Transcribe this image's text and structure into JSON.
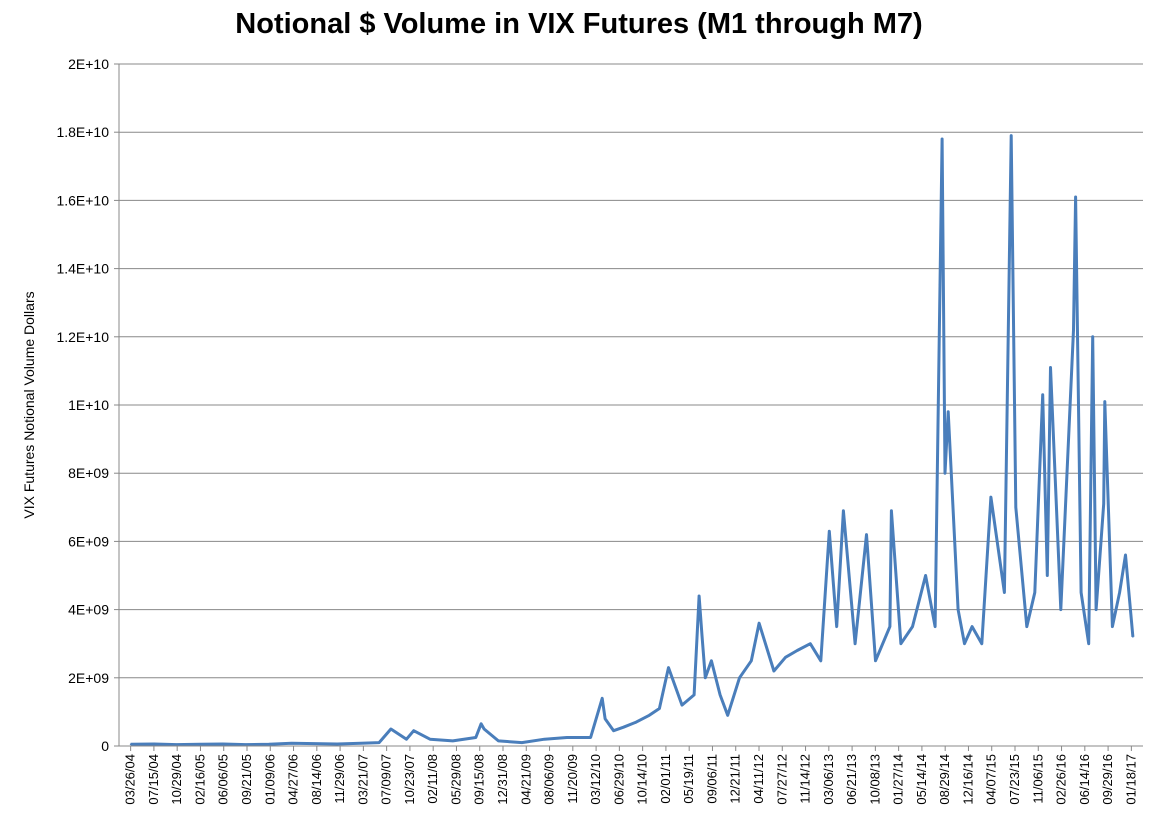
{
  "chart_data": {
    "type": "line",
    "title": "Notional $ Volume in VIX Futures (M1 through M7)",
    "xlabel": "",
    "ylabel": "VIX Futures Notional Volume Dollars",
    "ylim": [
      0,
      20000000000
    ],
    "y_ticks": [
      0,
      2000000000,
      4000000000,
      6000000000,
      8000000000,
      10000000000,
      12000000000,
      14000000000,
      16000000000,
      18000000000,
      20000000000
    ],
    "y_tick_labels": [
      "0",
      "2E+09",
      "4E+09",
      "6E+09",
      "8E+09",
      "1E+10",
      "1.2E+10",
      "1.4E+10",
      "1.6E+10",
      "1.8E+10",
      "2E+10"
    ],
    "x_tick_labels": [
      "03/26/04",
      "07/15/04",
      "10/29/04",
      "02/16/05",
      "06/06/05",
      "09/21/05",
      "01/09/06",
      "04/27/06",
      "08/14/06",
      "11/29/06",
      "03/21/07",
      "07/09/07",
      "10/23/07",
      "02/11/08",
      "05/29/08",
      "09/15/08",
      "12/31/08",
      "04/21/09",
      "08/06/09",
      "11/20/09",
      "03/12/10",
      "06/29/10",
      "10/14/10",
      "02/01/11",
      "05/19/11",
      "09/06/11",
      "12/21/11",
      "04/11/12",
      "07/27/12",
      "11/14/12",
      "03/06/13",
      "06/21/13",
      "10/08/13",
      "01/27/14",
      "05/14/14",
      "08/29/14",
      "12/16/14",
      "04/07/15",
      "07/23/15",
      "11/06/15",
      "02/26/16",
      "06/14/16",
      "09/29/16",
      "01/18/17"
    ],
    "grid": true,
    "legend": "none",
    "series": [
      {
        "color": "#4a7ebb",
        "x": [
          "03/26/04",
          "07/15/04",
          "10/29/04",
          "02/16/05",
          "06/06/05",
          "09/21/05",
          "01/09/06",
          "04/27/06",
          "08/14/06",
          "11/29/06",
          "03/21/07",
          "06/15/07",
          "08/10/07",
          "10/23/07",
          "11/26/07",
          "02/11/08",
          "05/29/08",
          "09/15/08",
          "10/10/08",
          "10/24/08",
          "12/31/08",
          "04/21/09",
          "08/06/09",
          "11/20/09",
          "03/12/10",
          "05/06/10",
          "05/20/10",
          "06/29/10",
          "08/15/10",
          "10/14/10",
          "12/15/10",
          "02/01/11",
          "03/16/11",
          "05/19/11",
          "07/15/11",
          "08/08/11",
          "08/22/11",
          "09/06/11",
          "10/05/11",
          "11/15/11",
          "12/21/11",
          "02/15/12",
          "04/11/12",
          "05/18/12",
          "07/27/12",
          "09/20/12",
          "11/14/12",
          "01/15/13",
          "03/06/13",
          "04/15/13",
          "05/20/13",
          "06/21/13",
          "08/15/13",
          "10/08/13",
          "11/20/13",
          "01/27/14",
          "02/03/14",
          "03/20/14",
          "05/14/14",
          "07/15/14",
          "08/29/14",
          "10/01/14",
          "10/15/14",
          "10/30/14",
          "12/16/14",
          "01/15/15",
          "02/20/15",
          "04/07/15",
          "05/20/15",
          "07/23/15",
          "08/24/15",
          "09/15/15",
          "11/06/15",
          "12/14/15",
          "01/20/16",
          "02/11/16",
          "02/26/16",
          "04/15/16",
          "06/14/16",
          "06/24/16",
          "07/20/16",
          "08/25/16",
          "09/13/16",
          "09/29/16",
          "11/04/16",
          "11/09/16",
          "12/15/16",
          "01/18/17",
          "02/15/17",
          "03/22/17"
        ],
        "values": [
          50000000,
          60000000,
          40000000,
          50000000,
          60000000,
          40000000,
          50000000,
          80000000,
          70000000,
          60000000,
          80000000,
          100000000,
          500000000,
          200000000,
          450000000,
          200000000,
          150000000,
          250000000,
          650000000,
          500000000,
          150000000,
          100000000,
          200000000,
          250000000,
          250000000,
          1400000000,
          800000000,
          450000000,
          550000000,
          700000000,
          900000000,
          1100000000,
          2300000000,
          1200000000,
          1500000000,
          4400000000,
          3200000000,
          2000000000,
          2500000000,
          1500000000,
          900000000,
          2000000000,
          2500000000,
          3600000000,
          2200000000,
          2600000000,
          2800000000,
          3000000000,
          2500000000,
          6300000000,
          3500000000,
          6900000000,
          3000000000,
          6200000000,
          2500000000,
          3500000000,
          6900000000,
          3000000000,
          3500000000,
          5000000000,
          3500000000,
          17800000000,
          8000000000,
          9800000000,
          4000000000,
          3000000000,
          3500000000,
          3000000000,
          7300000000,
          4500000000,
          17900000000,
          7000000000,
          3500000000,
          4500000000,
          10300000000,
          5000000000,
          11100000000,
          4000000000,
          12200000000,
          16100000000,
          4500000000,
          3000000000,
          12000000000,
          4000000000,
          7100000000,
          10100000000,
          3500000000,
          4500000000,
          5600000000,
          3200000000
        ]
      }
    ]
  }
}
